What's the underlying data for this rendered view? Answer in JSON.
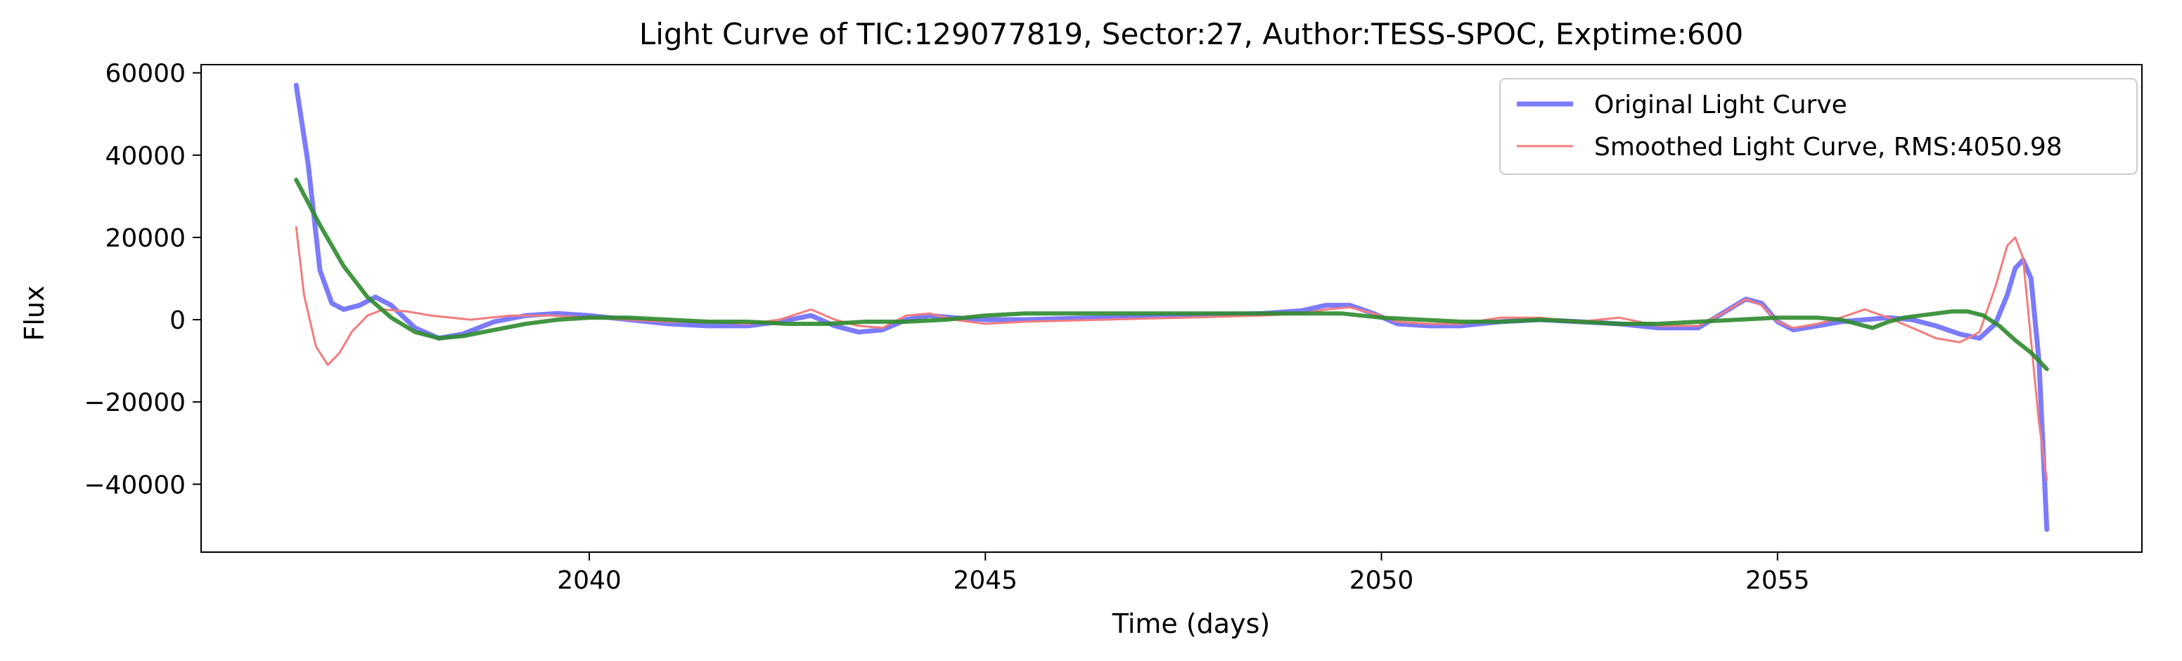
{
  "chart_data": {
    "type": "line",
    "title": "Light Curve of TIC:129077819, Sector:27, Author:TESS-SPOC, Exptime:600",
    "xlabel": "Time (days)",
    "ylabel": "Flux",
    "xlim": [
      2035.1,
      2059.6
    ],
    "ylim": [
      -56500,
      62000
    ],
    "xticks": [
      2040,
      2045,
      2050,
      2055
    ],
    "yticks": [
      60000,
      40000,
      20000,
      0,
      -20000,
      -40000
    ],
    "xtick_labels": [
      "2040",
      "2045",
      "2050",
      "2055"
    ],
    "ytick_labels": [
      "60000",
      "40000",
      "20000",
      "0",
      "−20000",
      "−40000"
    ],
    "grid": false,
    "legend": {
      "placement": "top-right"
    },
    "series": [
      {
        "name": "Original Light Curve",
        "color": "#7b7bfc",
        "x": [
          2036.3,
          2036.45,
          2036.6,
          2036.75,
          2036.9,
          2037.1,
          2037.3,
          2037.5,
          2037.8,
          2038.1,
          2038.4,
          2038.8,
          2039.2,
          2039.6,
          2040.0,
          2040.5,
          2041.0,
          2041.5,
          2042.0,
          2042.4,
          2042.8,
          2043.1,
          2043.4,
          2043.7,
          2044.0,
          2044.3,
          2044.6,
          2045.0,
          2045.5,
          2046.5,
          2047.5,
          2048.5,
          2049.0,
          2049.3,
          2049.6,
          2049.9,
          2050.2,
          2050.6,
          2051.0,
          2051.5,
          2052.0,
          2052.5,
          2053.0,
          2053.5,
          2054.0,
          2054.3,
          2054.6,
          2054.8,
          2055.0,
          2055.2,
          2055.5,
          2055.8,
          2056.1,
          2056.4,
          2056.7,
          2057.0,
          2057.3,
          2057.55,
          2057.75,
          2057.9,
          2058.0,
          2058.1,
          2058.2,
          2058.3,
          2058.4
        ],
        "y": [
          57000,
          38000,
          12000,
          4000,
          2500,
          3500,
          5500,
          3500,
          -2000,
          -4500,
          -3500,
          -500,
          1000,
          1500,
          1000,
          0,
          -1000,
          -1500,
          -1500,
          -500,
          1000,
          -1500,
          -3000,
          -2500,
          0,
          1000,
          500,
          0,
          0,
          500,
          1000,
          1500,
          2200,
          3500,
          3500,
          1500,
          -1000,
          -1500,
          -1500,
          -500,
          0,
          -500,
          -1000,
          -2000,
          -2000,
          1500,
          5000,
          4000,
          -500,
          -2500,
          -1500,
          -500,
          0,
          500,
          0,
          -1500,
          -3500,
          -4500,
          -1000,
          6000,
          12500,
          14500,
          10000,
          -10000,
          -51000
        ]
      },
      {
        "name": "Smoothed Light Curve, RMS:4050.98",
        "color": "#f47c7c",
        "x": [
          2036.3,
          2036.4,
          2036.55,
          2036.7,
          2036.85,
          2037.0,
          2037.2,
          2037.4,
          2037.7,
          2038.0,
          2038.5,
          2039.0,
          2039.5,
          2040.0,
          2040.5,
          2041.0,
          2041.5,
          2042.0,
          2042.4,
          2042.8,
          2043.1,
          2043.4,
          2043.7,
          2044.0,
          2044.3,
          2044.6,
          2045.0,
          2045.5,
          2046.5,
          2047.5,
          2048.5,
          2049.0,
          2049.3,
          2049.6,
          2049.9,
          2050.2,
          2050.6,
          2051.0,
          2051.5,
          2052.0,
          2052.5,
          2053.0,
          2053.5,
          2054.0,
          2054.3,
          2054.6,
          2054.8,
          2055.0,
          2055.2,
          2055.5,
          2055.8,
          2056.1,
          2056.4,
          2056.7,
          2057.0,
          2057.3,
          2057.55,
          2057.75,
          2057.9,
          2058.0,
          2058.1,
          2058.2,
          2058.3,
          2058.4
        ],
        "y": [
          22500,
          6000,
          -6500,
          -11000,
          -8000,
          -3000,
          1000,
          2500,
          2000,
          1000,
          0,
          1000,
          1000,
          500,
          0,
          -500,
          -500,
          -1000,
          0,
          2500,
          0,
          -1500,
          -2000,
          1000,
          1500,
          0,
          -1000,
          -500,
          0,
          500,
          1000,
          1500,
          2500,
          3000,
          1500,
          -500,
          -1000,
          -1000,
          500,
          500,
          -500,
          500,
          -1500,
          -1500,
          1500,
          5000,
          3500,
          -500,
          -2000,
          -1000,
          500,
          2500,
          500,
          -2000,
          -4500,
          -5500,
          -3000,
          8000,
          18000,
          20000,
          15000,
          -5000,
          -25000,
          -39000
        ]
      },
      {
        "name": "",
        "color": "#2e8b2e",
        "x": [
          2036.3,
          2036.6,
          2036.9,
          2037.2,
          2037.5,
          2037.8,
          2038.1,
          2038.4,
          2038.8,
          2039.2,
          2039.6,
          2040.0,
          2040.5,
          2041.0,
          2041.5,
          2042.0,
          2042.5,
          2043.0,
          2043.5,
          2044.0,
          2044.5,
          2045.0,
          2045.5,
          2046.0,
          2047.0,
          2048.0,
          2049.0,
          2049.5,
          2050.0,
          2050.5,
          2051.0,
          2051.5,
          2052.0,
          2052.5,
          2053.0,
          2053.5,
          2054.0,
          2054.5,
          2055.0,
          2055.5,
          2055.8,
          2056.0,
          2056.2,
          2056.4,
          2056.6,
          2056.8,
          2057.0,
          2057.2,
          2057.4,
          2057.6,
          2057.8,
          2058.0,
          2058.2,
          2058.4
        ],
        "y": [
          34000,
          23000,
          13000,
          5500,
          500,
          -3000,
          -4500,
          -4000,
          -2500,
          -1000,
          0,
          500,
          500,
          0,
          -500,
          -500,
          -1000,
          -1000,
          -500,
          -500,
          0,
          1000,
          1500,
          1500,
          1500,
          1500,
          1500,
          1500,
          500,
          0,
          -500,
          -500,
          0,
          -500,
          -1000,
          -1000,
          -500,
          0,
          500,
          500,
          0,
          -1000,
          -2000,
          -500,
          500,
          1000,
          1500,
          2000,
          2000,
          1000,
          -1500,
          -5000,
          -8000,
          -12000
        ]
      }
    ]
  }
}
